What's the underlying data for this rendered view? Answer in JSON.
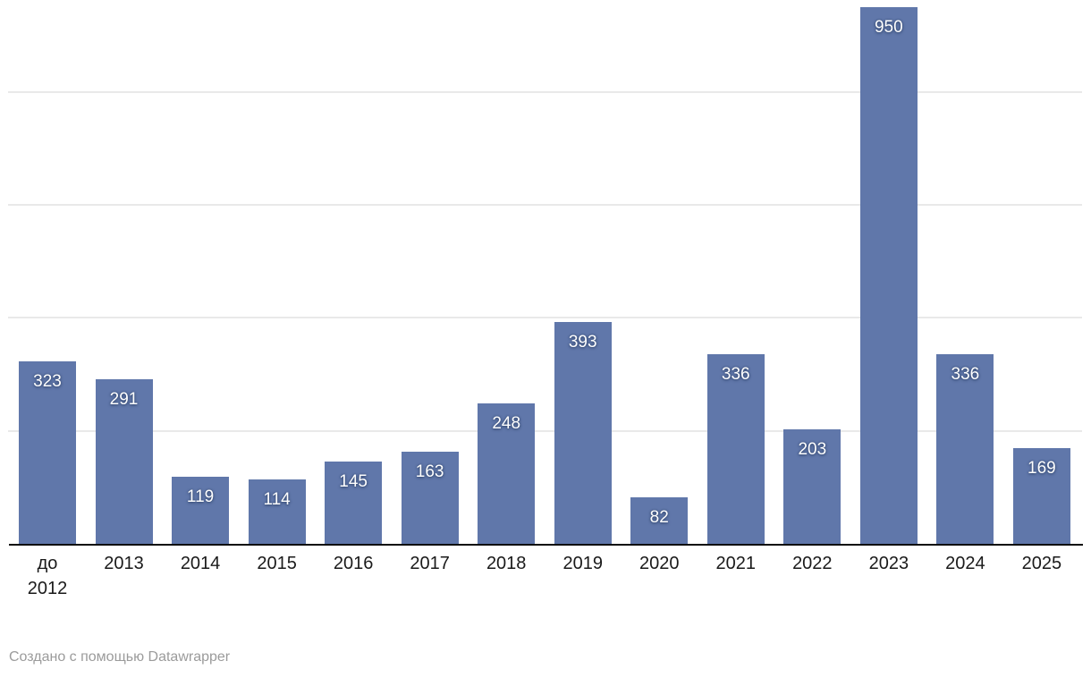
{
  "chart_data": {
    "type": "bar",
    "title": "",
    "xlabel": "",
    "ylabel": "",
    "categories": [
      "до\n2012",
      "2013",
      "2014",
      "2015",
      "2016",
      "2017",
      "2018",
      "2019",
      "2020",
      "2021",
      "2022",
      "2023",
      "2024",
      "2025"
    ],
    "values": [
      323,
      291,
      119,
      114,
      145,
      163,
      248,
      393,
      82,
      336,
      203,
      950,
      336,
      169
    ],
    "ylim": [
      0,
      963
    ],
    "gridline_values": [
      200,
      400,
      600,
      800
    ],
    "grid": "horizontal",
    "legend_position": "none",
    "bar_color": "#6077aa",
    "value_label_color": "#ffffff",
    "gridline_color": "#e9e9e9",
    "axis_line_color": "#0c0c0c",
    "axis_label_color": "#1a1a1a"
  },
  "footer": {
    "attribution": "Создано с помощью Datawrapper"
  }
}
